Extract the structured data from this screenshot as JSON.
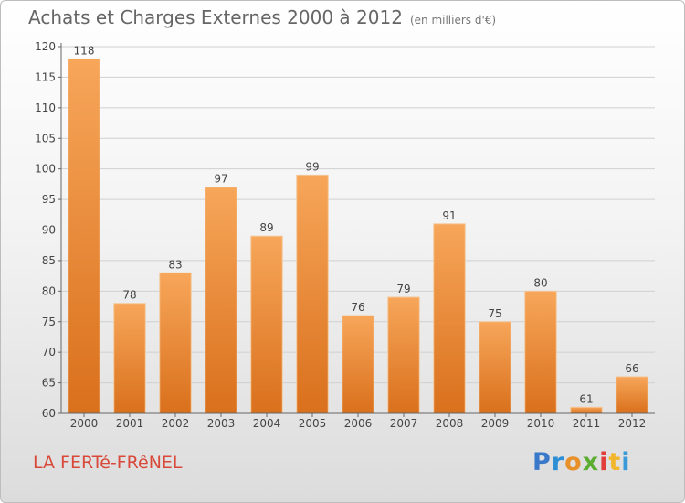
{
  "title": "Achats et Charges Externes 2000 à 2012",
  "subtitle": "(en milliers d'€)",
  "place": "LA FERTé-FRêNEL",
  "brand": {
    "letters": [
      "P",
      "r",
      "o",
      "x",
      "i",
      "t",
      "i"
    ],
    "colors": [
      "#3a78c9",
      "#2f8fd6",
      "#e8902a",
      "#5cae32",
      "#e23d3d",
      "#f2b62c",
      "#3a9ad9"
    ]
  },
  "colors": {
    "bar_light": "#f7a65a",
    "bar_dark": "#d9701c",
    "bar_edge": "#f4c89a",
    "grid": "#d0d0d0",
    "axis": "#666666",
    "text": "#444444"
  },
  "chart_data": {
    "type": "bar",
    "categories": [
      "2000",
      "2001",
      "2002",
      "2003",
      "2004",
      "2005",
      "2006",
      "2007",
      "2008",
      "2009",
      "2010",
      "2011",
      "2012"
    ],
    "values": [
      118,
      78,
      83,
      97,
      89,
      99,
      76,
      79,
      91,
      75,
      80,
      61,
      66
    ],
    "ylim": [
      60,
      120
    ],
    "yticks": [
      60,
      65,
      70,
      75,
      80,
      85,
      90,
      95,
      100,
      105,
      110,
      115,
      120
    ],
    "grid": true,
    "data_labels": true
  }
}
